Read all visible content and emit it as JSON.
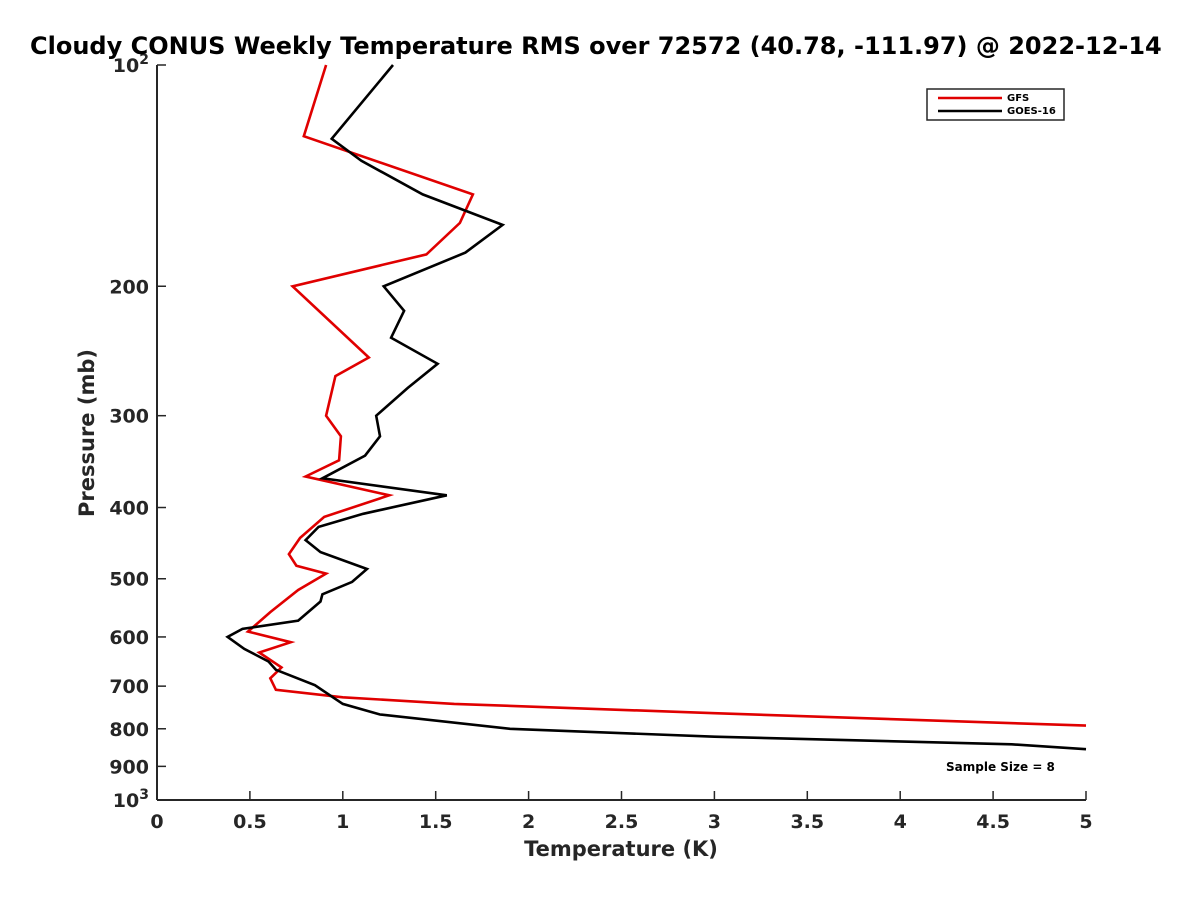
{
  "chart_data": {
    "type": "line",
    "title": "Cloudy CONUS Weekly Temperature RMS over 72572 (40.78, -111.97) @ 2022-12-14",
    "xlabel": "Temperature (K)",
    "ylabel": "Pressure (mb)",
    "xlim": [
      0,
      5
    ],
    "ylim": [
      100,
      1000
    ],
    "yscale": "log",
    "yreversed": true,
    "x_ticks": [
      0,
      0.5,
      1,
      1.5,
      2,
      2.5,
      3,
      3.5,
      4,
      4.5,
      5
    ],
    "x_tick_labels": [
      "0",
      "0.5",
      "1",
      "1.5",
      "2",
      "2.5",
      "3",
      "3.5",
      "4",
      "4.5",
      "5"
    ],
    "y_ticks": [
      100,
      200,
      300,
      400,
      500,
      600,
      700,
      800,
      900,
      1000
    ],
    "y_tick_labels": [
      {
        "base": "10",
        "exp": "2"
      },
      {
        "base": "200"
      },
      {
        "base": "300"
      },
      {
        "base": "400"
      },
      {
        "base": "500"
      },
      {
        "base": "600"
      },
      {
        "base": "700"
      },
      {
        "base": "800"
      },
      {
        "base": "900"
      },
      {
        "base": "10",
        "exp": "3"
      }
    ],
    "grid": false,
    "legend_position": "top-right",
    "annotation": "Sample Size = 8",
    "series": [
      {
        "name": "GFS",
        "color": "#e00000",
        "points": [
          [
            0.91,
            100
          ],
          [
            0.79,
            125
          ],
          [
            1.7,
            150
          ],
          [
            1.63,
            164
          ],
          [
            1.45,
            181
          ],
          [
            0.73,
            200
          ],
          [
            1.14,
            250
          ],
          [
            0.96,
            265
          ],
          [
            0.91,
            300
          ],
          [
            0.99,
            320
          ],
          [
            0.98,
            345
          ],
          [
            0.8,
            363
          ],
          [
            1.25,
            385
          ],
          [
            0.9,
            412
          ],
          [
            0.77,
            440
          ],
          [
            0.71,
            463
          ],
          [
            0.75,
            480
          ],
          [
            0.91,
            492
          ],
          [
            0.76,
            518
          ],
          [
            0.61,
            555
          ],
          [
            0.49,
            590
          ],
          [
            0.72,
            610
          ],
          [
            0.55,
            630
          ],
          [
            0.67,
            660
          ],
          [
            0.61,
            683
          ],
          [
            0.64,
            708
          ],
          [
            1.0,
            725
          ],
          [
            1.6,
            740
          ],
          [
            3.0,
            762
          ],
          [
            5.0,
            792
          ]
        ]
      },
      {
        "name": "GOES-16",
        "color": "#000000",
        "points": [
          [
            1.27,
            100
          ],
          [
            0.94,
            126
          ],
          [
            1.1,
            135
          ],
          [
            1.43,
            150
          ],
          [
            1.86,
            165
          ],
          [
            1.66,
            180
          ],
          [
            1.22,
            200
          ],
          [
            1.33,
            216
          ],
          [
            1.26,
            235
          ],
          [
            1.51,
            255
          ],
          [
            1.35,
            275
          ],
          [
            1.18,
            300
          ],
          [
            1.2,
            320
          ],
          [
            1.12,
            340
          ],
          [
            0.89,
            365
          ],
          [
            1.56,
            385
          ],
          [
            1.11,
            408
          ],
          [
            0.87,
            425
          ],
          [
            0.8,
            443
          ],
          [
            0.88,
            460
          ],
          [
            1.13,
            485
          ],
          [
            1.05,
            505
          ],
          [
            0.89,
            525
          ],
          [
            0.88,
            537
          ],
          [
            0.76,
            570
          ],
          [
            0.46,
            585
          ],
          [
            0.38,
            600
          ],
          [
            0.47,
            623
          ],
          [
            0.6,
            648
          ],
          [
            0.64,
            665
          ],
          [
            0.85,
            698
          ],
          [
            1.0,
            740
          ],
          [
            1.2,
            765
          ],
          [
            1.9,
            800
          ],
          [
            3.0,
            820
          ],
          [
            4.6,
            840
          ],
          [
            5.0,
            853
          ]
        ]
      }
    ]
  }
}
